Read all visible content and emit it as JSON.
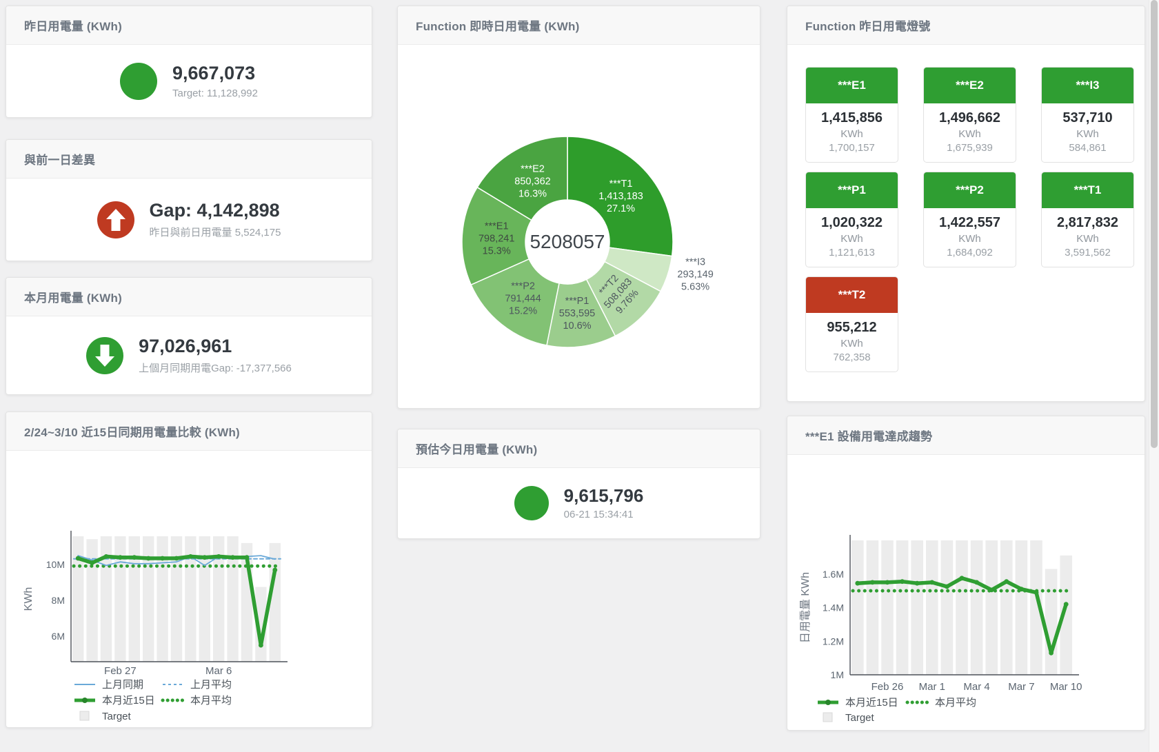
{
  "page": {
    "background": "#f0f0f1",
    "accent_green": "#2f9e32",
    "accent_red": "#bf3a21"
  },
  "cards": {
    "yesterday": {
      "title": "昨日用電量 (KWh)",
      "value": "9,667,073",
      "subtitle": "Target: 11,128,992",
      "status_color": "#2f9e32"
    },
    "day_gap": {
      "title": "與前一日差異",
      "value": "Gap: 4,142,898",
      "subtitle": "昨日與前日用電量 5,524,175",
      "status_color": "#bf3a21",
      "direction": "up"
    },
    "month": {
      "title": "本月用電量 (KWh)",
      "value": "97,026,961",
      "subtitle": "上個月同期用電Gap: -17,377,566",
      "status_color": "#2f9e32",
      "direction": "down"
    },
    "estimate": {
      "title": "預估今日用電量 (KWh)",
      "value": "9,615,796",
      "subtitle": "06-21 15:34:41",
      "status_color": "#2f9e32"
    },
    "lights": {
      "title": "Function 昨日用電燈號",
      "unit": "KWh",
      "tiles": [
        {
          "name": "***E1",
          "value": "1,415,856",
          "target": "1,700,157",
          "color": "#2f9e32"
        },
        {
          "name": "***E2",
          "value": "1,496,662",
          "target": "1,675,939",
          "color": "#2f9e32"
        },
        {
          "name": "***I3",
          "value": "537,710",
          "target": "584,861",
          "color": "#2f9e32"
        },
        {
          "name": "***P1",
          "value": "1,020,322",
          "target": "1,121,613",
          "color": "#2f9e32"
        },
        {
          "name": "***P2",
          "value": "1,422,557",
          "target": "1,684,092",
          "color": "#2f9e32"
        },
        {
          "name": "***T1",
          "value": "2,817,832",
          "target": "3,591,562",
          "color": "#2f9e32"
        },
        {
          "name": "***T2",
          "value": "955,212",
          "target": "762,358",
          "color": "#bf3a21"
        }
      ]
    }
  },
  "chart_data": [
    {
      "id": "donut",
      "type": "pie",
      "title": "Function 即時日用電量 (KWh)",
      "center_total": "5208057",
      "slices": [
        {
          "label": "***T1",
          "value": 1413183,
          "pct": "27.1%",
          "color": "#2e9d2b",
          "text_color": "#ffffff",
          "label_style": "inside"
        },
        {
          "label": "***I3",
          "value": 293149,
          "pct": "5.63%",
          "color": "#cfe8c5",
          "text_color": "#5a646d",
          "label_style": "outside"
        },
        {
          "label": "***T2",
          "value": 508083,
          "pct": "9.76%",
          "color": "#b2d9a6",
          "text_color": "#4d565e",
          "label_style": "inside-rotated"
        },
        {
          "label": "***P1",
          "value": 553595,
          "pct": "10.6%",
          "color": "#9bcd8d",
          "text_color": "#4d565e",
          "label_style": "inside"
        },
        {
          "label": "***P2",
          "value": 791444,
          "pct": "15.2%",
          "color": "#82c274",
          "text_color": "#4d565e",
          "label_style": "inside"
        },
        {
          "label": "***E1",
          "value": 798241,
          "pct": "15.3%",
          "color": "#68b55a",
          "text_color": "#3e4a41",
          "label_style": "inside"
        },
        {
          "label": "***E2",
          "value": 850362,
          "pct": "16.3%",
          "color": "#4aa441",
          "text_color": "#ffffff",
          "label_style": "inside"
        }
      ]
    },
    {
      "id": "compare",
      "type": "line",
      "title": "2/24~3/10 近15日同期用電量比較 (KWh)",
      "ylabel": "KWh",
      "ylim": [
        4580000,
        11580000
      ],
      "yticks": [
        {
          "value": 6000000,
          "label": "6M"
        },
        {
          "value": 8000000,
          "label": "8M"
        },
        {
          "value": 10000000,
          "label": "10M"
        }
      ],
      "xticks": [
        {
          "index": 3,
          "label": "Feb 27"
        },
        {
          "index": 10,
          "label": "Mar 6"
        }
      ],
      "series": [
        {
          "name": "Target",
          "style": "bar",
          "color": "#ececec",
          "values": [
            11580000,
            11420000,
            11580000,
            11580000,
            11580000,
            11580000,
            11580000,
            11580000,
            11580000,
            11580000,
            11580000,
            11580000,
            11200000,
            8750000,
            11200000
          ]
        },
        {
          "name": "上月同期",
          "style": "line",
          "color": "#6aa9d8",
          "values": [
            10500000,
            10250000,
            9950000,
            10150000,
            10050000,
            10050000,
            10100000,
            10150000,
            10450000,
            9950000,
            10450000,
            10400000,
            10450000,
            10500000,
            10300000
          ]
        },
        {
          "name": "上月平均",
          "style": "dashed",
          "color": "#6aa9d8",
          "value": 10320000
        },
        {
          "name": "本月近15日",
          "style": "line-thick",
          "color": "#2f9e32",
          "values": [
            10350000,
            10100000,
            10450000,
            10400000,
            10400000,
            10350000,
            10350000,
            10350000,
            10450000,
            10400000,
            10450000,
            10400000,
            10400000,
            5500000,
            9700000
          ]
        },
        {
          "name": "本月平均",
          "style": "dotted",
          "color": "#2f9e32",
          "value": 9920000
        }
      ],
      "legend_rows": [
        [
          {
            "name": "上月同期",
            "marker": "line",
            "color": "#6aa9d8"
          },
          {
            "name": "上月平均",
            "marker": "dashed",
            "color": "#6aa9d8"
          }
        ],
        [
          {
            "name": "本月近15日",
            "marker": "line-thick",
            "color": "#2f9e32"
          },
          {
            "name": "本月平均",
            "marker": "dotted",
            "color": "#2f9e32"
          }
        ],
        [
          {
            "name": "Target",
            "marker": "square",
            "color": "#ececec"
          }
        ]
      ]
    },
    {
      "id": "trend",
      "type": "line",
      "title": "***E1 設備用電達成趨勢",
      "ylabel": "日用電量 KWh",
      "ylim": [
        1000000,
        1800000
      ],
      "yticks": [
        {
          "value": 1000000,
          "label": "1M"
        },
        {
          "value": 1200000,
          "label": "1.2M"
        },
        {
          "value": 1400000,
          "label": "1.4M"
        },
        {
          "value": 1600000,
          "label": "1.6M"
        }
      ],
      "xticks": [
        {
          "index": 2,
          "label": "Feb 26"
        },
        {
          "index": 5,
          "label": "Mar 1"
        },
        {
          "index": 8,
          "label": "Mar 4"
        },
        {
          "index": 11,
          "label": "Mar 7"
        },
        {
          "index": 14,
          "label": "Mar 10"
        }
      ],
      "series": [
        {
          "name": "Target",
          "style": "bar",
          "color": "#ececec",
          "values": [
            1800000,
            1800000,
            1800000,
            1800000,
            1800000,
            1800000,
            1800000,
            1800000,
            1800000,
            1800000,
            1800000,
            1800000,
            1800000,
            1630000,
            1710000
          ]
        },
        {
          "name": "本月近15日",
          "style": "line-thick",
          "color": "#2f9e32",
          "values": [
            1545000,
            1550000,
            1550000,
            1555000,
            1545000,
            1550000,
            1525000,
            1575000,
            1550000,
            1505000,
            1555000,
            1510000,
            1490000,
            1130000,
            1420000
          ]
        },
        {
          "name": "本月平均",
          "style": "dotted",
          "color": "#2f9e32",
          "value": 1500000
        }
      ],
      "legend_rows": [
        [
          {
            "name": "本月近15日",
            "marker": "line-thick",
            "color": "#2f9e32"
          },
          {
            "name": "本月平均",
            "marker": "dotted",
            "color": "#2f9e32"
          }
        ],
        [
          {
            "name": "Target",
            "marker": "square",
            "color": "#ececec"
          }
        ]
      ]
    }
  ]
}
